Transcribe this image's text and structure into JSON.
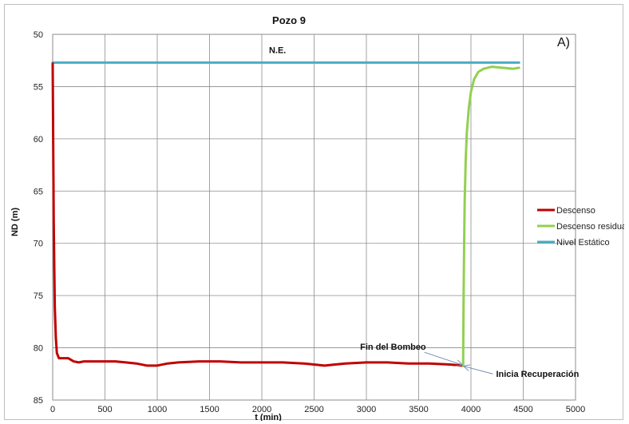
{
  "chart_data": {
    "type": "line",
    "title": "Pozo 9",
    "panel_label": "A)",
    "xlabel": "t (min)",
    "ylabel": "ND (m)",
    "xlim": [
      0,
      5000
    ],
    "ylim": [
      50,
      85
    ],
    "y_inverted": true,
    "x_ticks": [
      0,
      500,
      1000,
      1500,
      2000,
      2500,
      3000,
      3500,
      4000,
      4500,
      5000
    ],
    "y_ticks": [
      50,
      55,
      60,
      65,
      70,
      75,
      80,
      85
    ],
    "grid": true,
    "legend_position": "right",
    "series": [
      {
        "name": "Descenso",
        "color": "#c00000",
        "x": [
          0,
          10,
          20,
          30,
          40,
          60,
          100,
          150,
          200,
          250,
          300,
          400,
          500,
          600,
          700,
          800,
          900,
          1000,
          1100,
          1200,
          1400,
          1600,
          1800,
          2000,
          2200,
          2400,
          2500,
          2600,
          2700,
          2800,
          3000,
          3200,
          3400,
          3600,
          3800,
          3920
        ],
        "y": [
          52.8,
          68.0,
          76.0,
          79.0,
          80.5,
          81.0,
          81.0,
          81.0,
          81.3,
          81.4,
          81.3,
          81.3,
          81.3,
          81.3,
          81.4,
          81.5,
          81.7,
          81.7,
          81.5,
          81.4,
          81.3,
          81.3,
          81.4,
          81.4,
          81.4,
          81.5,
          81.6,
          81.7,
          81.6,
          81.5,
          81.4,
          81.4,
          81.5,
          81.5,
          81.6,
          81.7
        ]
      },
      {
        "name": "Descenso residual",
        "color": "#92d050",
        "x": [
          3925,
          3930,
          3935,
          3940,
          3950,
          3960,
          3980,
          4000,
          4030,
          4070,
          4120,
          4200,
          4300,
          4400,
          4460
        ],
        "y": [
          81.7,
          75.0,
          70.0,
          66.0,
          62.0,
          59.5,
          57.0,
          55.5,
          54.3,
          53.6,
          53.3,
          53.1,
          53.2,
          53.3,
          53.2
        ]
      },
      {
        "name": "Nivel Estático",
        "color": "#4bacc6",
        "x": [
          0,
          4460
        ],
        "y": [
          52.7,
          52.7
        ]
      }
    ],
    "annotations": [
      {
        "text": "N.E.",
        "x": 2150,
        "y": 51.8
      },
      {
        "text": "Fin del Bombeo",
        "x": 3570,
        "y": 80.2,
        "arrow_to": [
          3920,
          81.7
        ]
      },
      {
        "text": "Inicia Recuperación",
        "x": 4240,
        "y": 82.8,
        "arrow_to": [
          3920,
          81.7
        ]
      }
    ]
  }
}
